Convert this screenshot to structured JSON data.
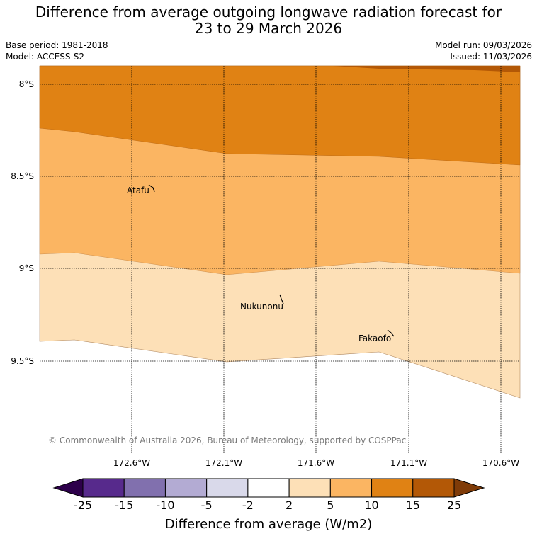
{
  "title_line1": "Difference from average outgoing longwave radiation forecast for",
  "title_line2": "23 to 29 March 2026",
  "base_period": "Base period: 1981-2018",
  "model": "Model: ACCESS-S2",
  "model_run": "Model run: 09/03/2026",
  "issued": "Issued: 11/03/2026",
  "lat_labels": [
    "8°S",
    "8.5°S",
    "9°S",
    "9.5°S"
  ],
  "lon_labels": [
    "172.6°W",
    "172.1°W",
    "171.6°W",
    "171.1°W",
    "170.6°W"
  ],
  "places": [
    {
      "name": "Atafu"
    },
    {
      "name": "Nukunonu"
    },
    {
      "name": "Fakaofo"
    }
  ],
  "copyright": "© Commonwealth of Australia 2026, Bureau of Meteorology, supported by COSPPac",
  "colorbar": {
    "ticks": [
      "-25",
      "-15",
      "-10",
      "-5",
      "-2",
      "2",
      "5",
      "10",
      "15",
      "25"
    ],
    "colors": [
      "#572a8c",
      "#8170ae",
      "#b3abd3",
      "#d9d9ea",
      "#ffffff",
      "#fde0b7",
      "#fbb562",
      "#e08214",
      "#b35806"
    ],
    "under_color": "#2d004b",
    "over_color": "#7f3b08",
    "title": "Difference from average (W/m2)"
  },
  "colors": {
    "band_15_25": "#b35806",
    "band_10_15": "#e08214",
    "band_5_10": "#fbb562",
    "band_2_5": "#fde0b7"
  }
}
